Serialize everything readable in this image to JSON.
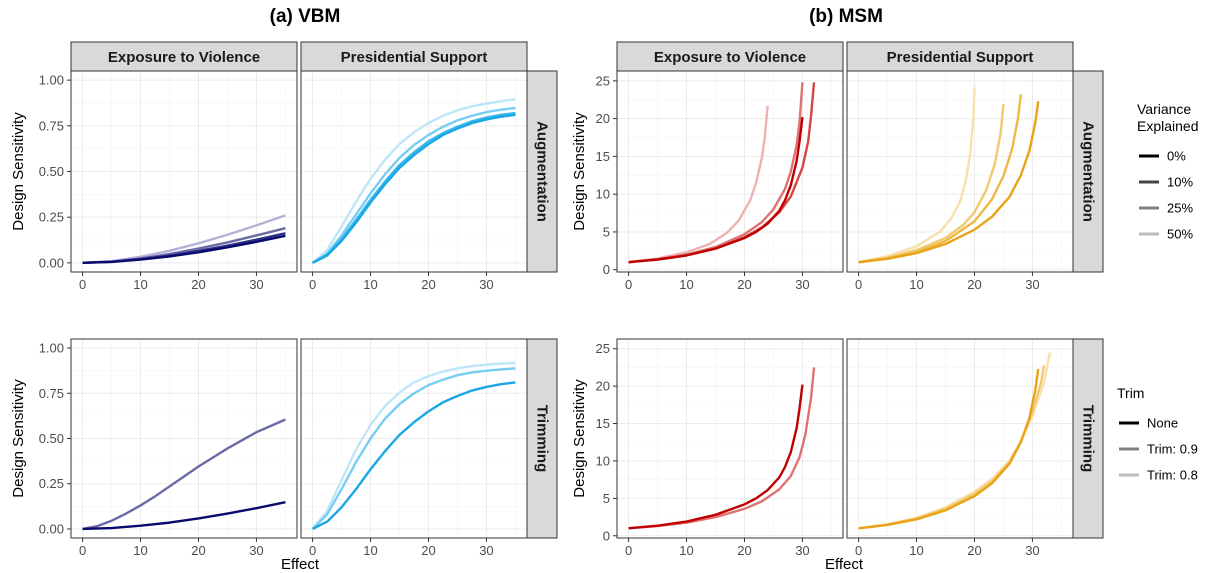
{
  "figure": {
    "left_title": "(a) VBM",
    "right_title": "(b) MSM",
    "x_axis_title": "Effect",
    "y_axis_title": "Design Sensitivity",
    "col_strips": [
      "Exposure to Violence",
      "Presidential Support"
    ],
    "row_strips": [
      "Augmentation",
      "Trimming"
    ]
  },
  "legend_variance": {
    "title_lines": [
      "Variance",
      "Explained"
    ],
    "items": [
      "0%",
      "10%",
      "25%",
      "50%"
    ],
    "colors": [
      "#000000",
      "#444444",
      "#808080",
      "#bdbdbd"
    ]
  },
  "legend_trim": {
    "title": "Trim",
    "items": [
      "None",
      "Trim: 0.9",
      "Trim: 0.8"
    ],
    "colors": [
      "#000000",
      "#808080",
      "#bdbdbd"
    ]
  },
  "chart_data": [
    {
      "type": "line",
      "method": "VBM",
      "panel_row": "Augmentation",
      "panel_col": "Exposure to Violence",
      "xlim": [
        -2,
        37
      ],
      "ylim": [
        -0.05,
        1.05
      ],
      "x_ticks": [
        0,
        10,
        20,
        30
      ],
      "y_ticks": [
        "0.00",
        "0.25",
        "0.50",
        "0.75",
        "1.00"
      ],
      "series": [
        {
          "level": "0%",
          "color": "#0a0a6e",
          "x": [
            0,
            5,
            10,
            15,
            20,
            25,
            30,
            35
          ],
          "y": [
            0.0,
            0.005,
            0.018,
            0.035,
            0.058,
            0.085,
            0.115,
            0.148
          ]
        },
        {
          "level": "10%",
          "color": "#2e2e85",
          "x": [
            0,
            5,
            10,
            15,
            20,
            25,
            30,
            35
          ],
          "y": [
            0.0,
            0.006,
            0.02,
            0.04,
            0.065,
            0.094,
            0.127,
            0.162
          ]
        },
        {
          "level": "25%",
          "color": "#6a6aa6",
          "x": [
            0,
            5,
            10,
            15,
            20,
            25,
            30,
            35
          ],
          "y": [
            0.0,
            0.007,
            0.024,
            0.048,
            0.078,
            0.112,
            0.15,
            0.19
          ]
        },
        {
          "level": "50%",
          "color": "#b3b3d6",
          "x": [
            0,
            5,
            10,
            15,
            20,
            25,
            30,
            35
          ],
          "y": [
            0.0,
            0.009,
            0.033,
            0.066,
            0.107,
            0.154,
            0.205,
            0.26
          ]
        }
      ]
    },
    {
      "type": "line",
      "method": "VBM",
      "panel_row": "Augmentation",
      "panel_col": "Presidential Support",
      "xlim": [
        -2,
        37
      ],
      "ylim": [
        -0.05,
        1.05
      ],
      "x_ticks": [
        0,
        10,
        20,
        30
      ],
      "y_ticks": [
        "0.00",
        "0.25",
        "0.50",
        "0.75",
        "1.00"
      ],
      "series": [
        {
          "level": "0%",
          "color": "#1aa7e6",
          "x": [
            0,
            2.5,
            5,
            7.5,
            10,
            12.5,
            15,
            17.5,
            20,
            22.5,
            25,
            27.5,
            30,
            32.5,
            35
          ],
          "y": [
            0.0,
            0.04,
            0.12,
            0.22,
            0.33,
            0.43,
            0.52,
            0.59,
            0.65,
            0.7,
            0.735,
            0.765,
            0.785,
            0.8,
            0.81
          ]
        },
        {
          "level": "10%",
          "color": "#39b6ec",
          "x": [
            0,
            2.5,
            5,
            7.5,
            10,
            12.5,
            15,
            17.5,
            20,
            22.5,
            25,
            27.5,
            30,
            32.5,
            35
          ],
          "y": [
            0.0,
            0.045,
            0.13,
            0.235,
            0.345,
            0.445,
            0.535,
            0.605,
            0.665,
            0.71,
            0.745,
            0.775,
            0.795,
            0.81,
            0.82
          ]
        },
        {
          "level": "25%",
          "color": "#78cef2",
          "x": [
            0,
            2.5,
            5,
            7.5,
            10,
            12.5,
            15,
            17.5,
            20,
            22.5,
            25,
            27.5,
            30,
            32.5,
            35
          ],
          "y": [
            0.0,
            0.05,
            0.15,
            0.265,
            0.38,
            0.485,
            0.575,
            0.645,
            0.7,
            0.745,
            0.78,
            0.805,
            0.825,
            0.838,
            0.848
          ]
        },
        {
          "level": "50%",
          "color": "#bfe6f8",
          "x": [
            0,
            2.5,
            5,
            7.5,
            10,
            12.5,
            15,
            17.5,
            20,
            22.5,
            25,
            27.5,
            30,
            32.5,
            35
          ],
          "y": [
            0.0,
            0.07,
            0.2,
            0.335,
            0.46,
            0.565,
            0.65,
            0.715,
            0.765,
            0.805,
            0.835,
            0.857,
            0.872,
            0.885,
            0.895
          ]
        }
      ]
    },
    {
      "type": "line",
      "method": "VBM",
      "panel_row": "Trimming",
      "panel_col": "Exposure to Violence",
      "xlim": [
        -2,
        37
      ],
      "ylim": [
        -0.05,
        1.05
      ],
      "x_ticks": [
        0,
        10,
        20,
        30
      ],
      "y_ticks": [
        "0.00",
        "0.25",
        "0.50",
        "0.75",
        "1.00"
      ],
      "series": [
        {
          "level": "None",
          "color": "#0a0a6e",
          "x": [
            0,
            5,
            10,
            15,
            20,
            25,
            30,
            35
          ],
          "y": [
            0.0,
            0.005,
            0.018,
            0.035,
            0.058,
            0.085,
            0.115,
            0.148
          ]
        },
        {
          "level": "Trim: 0.9",
          "color": "#6a6aa6",
          "x": [
            0,
            2.5,
            5,
            7.5,
            10,
            12.5,
            15,
            17.5,
            20,
            22.5,
            25,
            27.5,
            30,
            32.5,
            35
          ],
          "y": [
            0.0,
            0.015,
            0.045,
            0.085,
            0.13,
            0.18,
            0.235,
            0.29,
            0.345,
            0.395,
            0.445,
            0.49,
            0.535,
            0.57,
            0.605
          ]
        }
      ]
    },
    {
      "type": "line",
      "method": "VBM",
      "panel_row": "Trimming",
      "panel_col": "Presidential Support",
      "xlim": [
        -2,
        37
      ],
      "ylim": [
        -0.05,
        1.05
      ],
      "x_ticks": [
        0,
        10,
        20,
        30
      ],
      "y_ticks": [
        "0.00",
        "0.25",
        "0.50",
        "0.75",
        "1.00"
      ],
      "series": [
        {
          "level": "None",
          "color": "#1aa7e6",
          "x": [
            0,
            2.5,
            5,
            7.5,
            10,
            12.5,
            15,
            17.5,
            20,
            22.5,
            25,
            27.5,
            30,
            32.5,
            35
          ],
          "y": [
            0.0,
            0.04,
            0.12,
            0.22,
            0.33,
            0.43,
            0.52,
            0.59,
            0.65,
            0.7,
            0.735,
            0.765,
            0.785,
            0.8,
            0.81
          ]
        },
        {
          "level": "Trim: 0.9",
          "color": "#78cef2",
          "x": [
            0,
            2.5,
            5,
            7.5,
            10,
            12.5,
            15,
            17.5,
            20,
            22.5,
            25,
            27.5,
            30,
            32.5,
            35
          ],
          "y": [
            0.0,
            0.08,
            0.22,
            0.37,
            0.5,
            0.61,
            0.69,
            0.75,
            0.795,
            0.825,
            0.85,
            0.865,
            0.875,
            0.882,
            0.888
          ]
        },
        {
          "level": "Trim: 0.8",
          "color": "#bfe6f8",
          "x": [
            0,
            2.5,
            5,
            7.5,
            10,
            12.5,
            15,
            17.5,
            20,
            22.5,
            25,
            27.5,
            30,
            32.5,
            35
          ],
          "y": [
            0.0,
            0.1,
            0.27,
            0.44,
            0.575,
            0.68,
            0.755,
            0.81,
            0.845,
            0.87,
            0.888,
            0.9,
            0.908,
            0.914,
            0.918
          ]
        }
      ]
    },
    {
      "type": "line",
      "method": "MSM",
      "panel_row": "Augmentation",
      "panel_col": "Exposure to Violence",
      "xlim": [
        -2,
        37
      ],
      "ylim": [
        -0.3,
        26.3
      ],
      "x_ticks": [
        0,
        10,
        20,
        30
      ],
      "y_ticks": [
        "0",
        "5",
        "10",
        "15",
        "20",
        "25"
      ],
      "series": [
        {
          "level": "0%",
          "color": "#c00000",
          "x": [
            0,
            5,
            10,
            15,
            20,
            22,
            24,
            26,
            27,
            28,
            29,
            29.5,
            30
          ],
          "y": [
            1.0,
            1.35,
            1.9,
            2.8,
            4.2,
            5.0,
            6.1,
            7.8,
            9.2,
            11.2,
            14.4,
            17.0,
            20.2
          ]
        },
        {
          "level": "10%",
          "color": "#d64545",
          "x": [
            0,
            5,
            10,
            15,
            20,
            23,
            26,
            28,
            30,
            31,
            31.5,
            32
          ],
          "y": [
            1.0,
            1.35,
            1.9,
            2.8,
            4.3,
            5.6,
            7.6,
            9.7,
            13.5,
            17.0,
            20.5,
            24.8
          ]
        },
        {
          "level": "25%",
          "color": "#de7272",
          "x": [
            0,
            5,
            10,
            15,
            20,
            23,
            25,
            27,
            28,
            29,
            29.5,
            30
          ],
          "y": [
            1.0,
            1.4,
            2.0,
            3.0,
            4.7,
            6.3,
            8.0,
            10.7,
            13.0,
            16.5,
            19.5,
            24.8
          ]
        },
        {
          "level": "50%",
          "color": "#efb1b1",
          "x": [
            0,
            5,
            10,
            14,
            17,
            19,
            21,
            22,
            23,
            23.5,
            24
          ],
          "y": [
            1.0,
            1.5,
            2.3,
            3.4,
            4.9,
            6.5,
            9.2,
            11.5,
            14.8,
            17.5,
            21.7
          ]
        }
      ]
    },
    {
      "type": "line",
      "method": "MSM",
      "panel_row": "Augmentation",
      "panel_col": "Presidential Support",
      "xlim": [
        -2,
        37
      ],
      "ylim": [
        -0.3,
        26.3
      ],
      "x_ticks": [
        0,
        10,
        20,
        30
      ],
      "y_ticks": [
        "0",
        "5",
        "10",
        "15",
        "20",
        "25"
      ],
      "series": [
        {
          "level": "0%",
          "color": "#e8a317",
          "x": [
            0,
            5,
            10,
            15,
            20,
            23,
            26,
            28,
            29.5,
            30.5,
            31
          ],
          "y": [
            1.0,
            1.45,
            2.2,
            3.4,
            5.3,
            7.0,
            9.6,
            12.5,
            15.8,
            19.5,
            22.3
          ]
        },
        {
          "level": "10%",
          "color": "#eeb845",
          "x": [
            0,
            5,
            10,
            15,
            20,
            23,
            25,
            26.5,
            27.5,
            28
          ],
          "y": [
            1.0,
            1.5,
            2.3,
            3.8,
            6.4,
            9.3,
            12.4,
            16.0,
            20.0,
            23.2
          ]
        },
        {
          "level": "25%",
          "color": "#f2ca6e",
          "x": [
            0,
            5,
            10,
            15,
            18,
            20,
            22,
            23.5,
            24.5,
            25
          ],
          "y": [
            1.0,
            1.6,
            2.6,
            4.2,
            5.9,
            7.6,
            10.5,
            14.0,
            18.0,
            21.9
          ]
        },
        {
          "level": "50%",
          "color": "#f8e0ad",
          "x": [
            0,
            5,
            10,
            14,
            16,
            17.5,
            18.5,
            19.3,
            19.8,
            20
          ],
          "y": [
            1.0,
            1.8,
            3.1,
            5.0,
            6.8,
            9.0,
            11.8,
            15.5,
            20.0,
            24.1
          ]
        }
      ]
    },
    {
      "type": "line",
      "method": "MSM",
      "panel_row": "Trimming",
      "panel_col": "Exposure to Violence",
      "xlim": [
        -2,
        37
      ],
      "ylim": [
        -0.3,
        26.3
      ],
      "x_ticks": [
        0,
        10,
        20,
        30
      ],
      "y_ticks": [
        "0",
        "5",
        "10",
        "15",
        "20",
        "25"
      ],
      "series": [
        {
          "level": "None",
          "color": "#c00000",
          "x": [
            0,
            5,
            10,
            15,
            20,
            22,
            24,
            26,
            27,
            28,
            29,
            29.5,
            30
          ],
          "y": [
            1.0,
            1.35,
            1.9,
            2.8,
            4.2,
            5.0,
            6.1,
            7.8,
            9.2,
            11.2,
            14.4,
            17.0,
            20.2
          ]
        },
        {
          "level": "Trim: 0.9",
          "color": "#de7272",
          "x": [
            0,
            5,
            10,
            15,
            20,
            23,
            26,
            28,
            29.5,
            30.5,
            31.5,
            32
          ],
          "y": [
            1.0,
            1.3,
            1.75,
            2.5,
            3.6,
            4.6,
            6.2,
            8.0,
            10.5,
            13.5,
            18.5,
            22.5
          ]
        }
      ]
    },
    {
      "type": "line",
      "method": "MSM",
      "panel_row": "Trimming",
      "panel_col": "Presidential Support",
      "xlim": [
        -2,
        37
      ],
      "ylim": [
        -0.3,
        26.3
      ],
      "x_ticks": [
        0,
        10,
        20,
        30
      ],
      "y_ticks": [
        "0",
        "5",
        "10",
        "15",
        "20",
        "25"
      ],
      "series": [
        {
          "level": "None",
          "color": "#e8a317",
          "x": [
            0,
            5,
            10,
            15,
            20,
            23,
            26,
            28,
            29.5,
            30.5,
            31
          ],
          "y": [
            1.0,
            1.45,
            2.2,
            3.4,
            5.3,
            7.0,
            9.6,
            12.5,
            15.8,
            19.5,
            22.3
          ]
        },
        {
          "level": "Trim: 0.9",
          "color": "#f2ca6e",
          "x": [
            0,
            5,
            10,
            15,
            20,
            23,
            26,
            28,
            30,
            31.5,
            32
          ],
          "y": [
            1.0,
            1.5,
            2.3,
            3.6,
            5.6,
            7.3,
            9.8,
            12.6,
            16.5,
            20.5,
            22.8
          ]
        },
        {
          "level": "Trim: 0.8",
          "color": "#f8e0ad",
          "x": [
            0,
            5,
            10,
            15,
            20,
            23,
            26,
            28,
            30,
            32,
            33
          ],
          "y": [
            1.0,
            1.55,
            2.4,
            3.8,
            5.9,
            7.6,
            10.0,
            12.6,
            16.0,
            20.5,
            24.5
          ]
        }
      ]
    }
  ]
}
